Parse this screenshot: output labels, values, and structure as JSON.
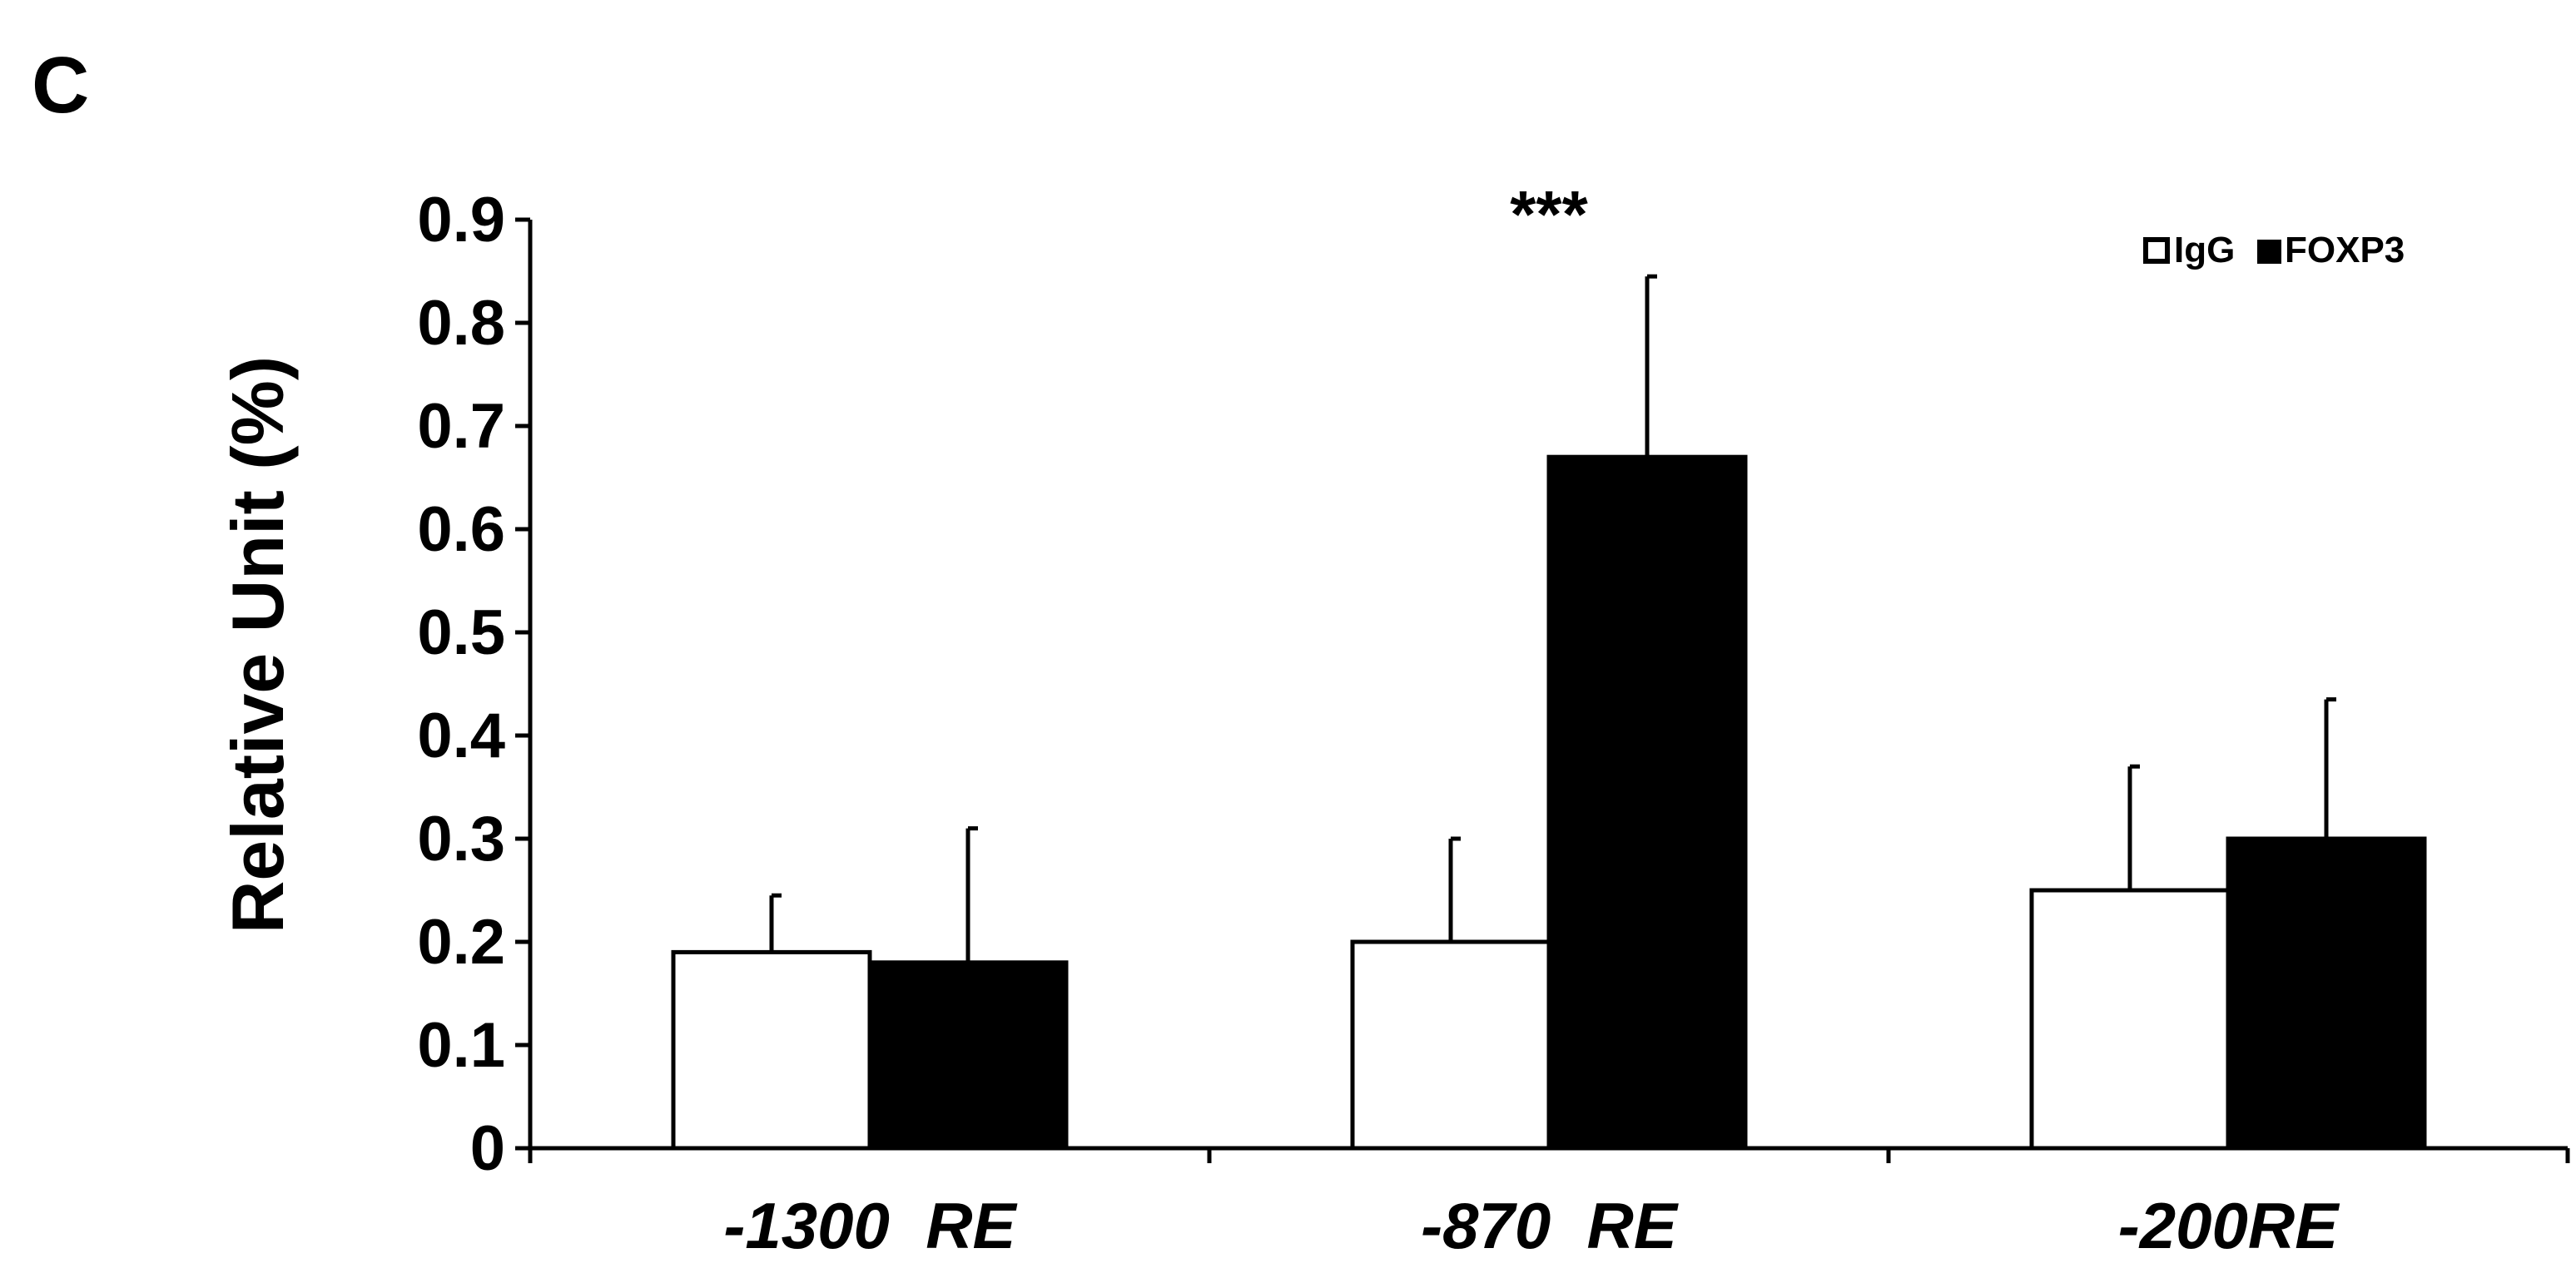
{
  "panel_label": "C",
  "chart_data": {
    "type": "bar",
    "categories": [
      "-1300  RE",
      "-870  RE",
      "-200RE"
    ],
    "series": [
      {
        "name": "IgG",
        "color": "#ffffff",
        "values": [
          0.19,
          0.2,
          0.25
        ],
        "error": [
          0.055,
          0.1,
          0.12
        ]
      },
      {
        "name": "FOXP3",
        "color": "#000000",
        "values": [
          0.18,
          0.67,
          0.3
        ],
        "error": [
          0.13,
          0.175,
          0.135
        ]
      }
    ],
    "annotations": [
      {
        "category": "-870  RE",
        "text": "***"
      }
    ],
    "xlabel": "",
    "ylabel": "Relative Unit (%)",
    "ylim": [
      0,
      0.9
    ],
    "yticks": [
      "0",
      "0.1",
      "0.2",
      "0.3",
      "0.4",
      "0.5",
      "0.6",
      "0.7",
      "0.8",
      "0.9"
    ],
    "grid": false,
    "legend_position": "top-right"
  }
}
